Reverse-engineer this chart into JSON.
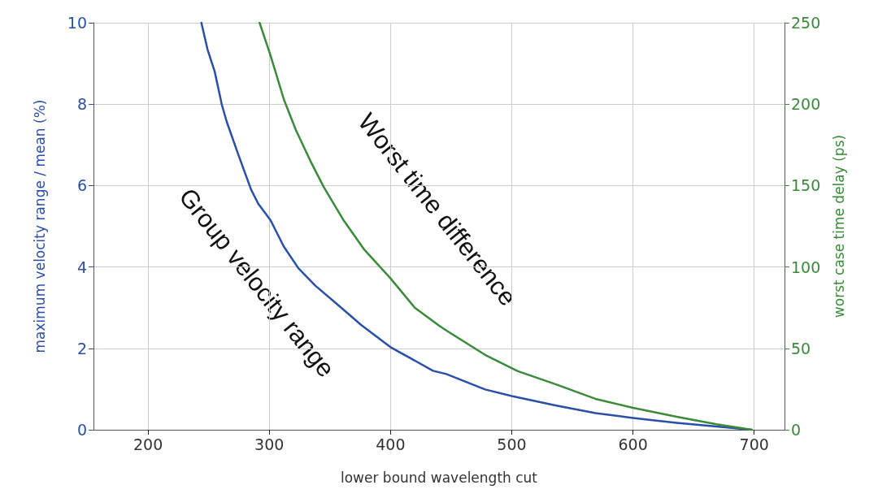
{
  "chart_data": {
    "type": "line",
    "xlabel": "lower bound wavelength cut",
    "ylabel": "maximum velocity range / mean (%)",
    "y2label": "worst case time delay (ps)",
    "xlim": [
      155,
      725
    ],
    "xticks": [
      200,
      300,
      400,
      500,
      600,
      700
    ],
    "ylim": [
      0,
      10
    ],
    "yticks": [
      0,
      2,
      4,
      6,
      8,
      10
    ],
    "y2lim": [
      0,
      250
    ],
    "y2ticks": [
      0,
      50,
      100,
      150,
      200,
      250
    ],
    "grid": true,
    "marker": "none",
    "line_style": "solid",
    "annotations": [
      "Worst time difference",
      "Group velocity range"
    ],
    "series": [
      {
        "color": "#2a4fa8",
        "x": [
          244,
          249,
          255,
          261,
          265,
          274,
          285,
          291,
          301,
          312,
          324,
          338,
          357,
          376,
          400,
          435,
          446,
          478,
          500,
          536,
          569,
          600,
          636,
          669,
          698
        ],
        "values": [
          10,
          9.35,
          8.8,
          7.97,
          7.56,
          6.8,
          5.9,
          5.55,
          5.15,
          4.5,
          3.97,
          3.54,
          3.06,
          2.57,
          2.03,
          1.45,
          1.37,
          0.99,
          0.83,
          0.6,
          0.41,
          0.29,
          0.17,
          0.08,
          0
        ]
      },
      {
        "color": "#3a8a3a",
        "axis": "y2",
        "x": [
          292,
          301,
          312,
          322,
          334,
          345,
          361,
          378,
          400,
          420,
          440,
          446,
          478,
          505,
          536,
          569,
          600,
          636,
          669,
          698
        ],
        "values": [
          250,
          230,
          203,
          184,
          165,
          149,
          129,
          111,
          93,
          75,
          64,
          61,
          46,
          36,
          28,
          19,
          13.5,
          8,
          3.4,
          0
        ]
      }
    ]
  }
}
